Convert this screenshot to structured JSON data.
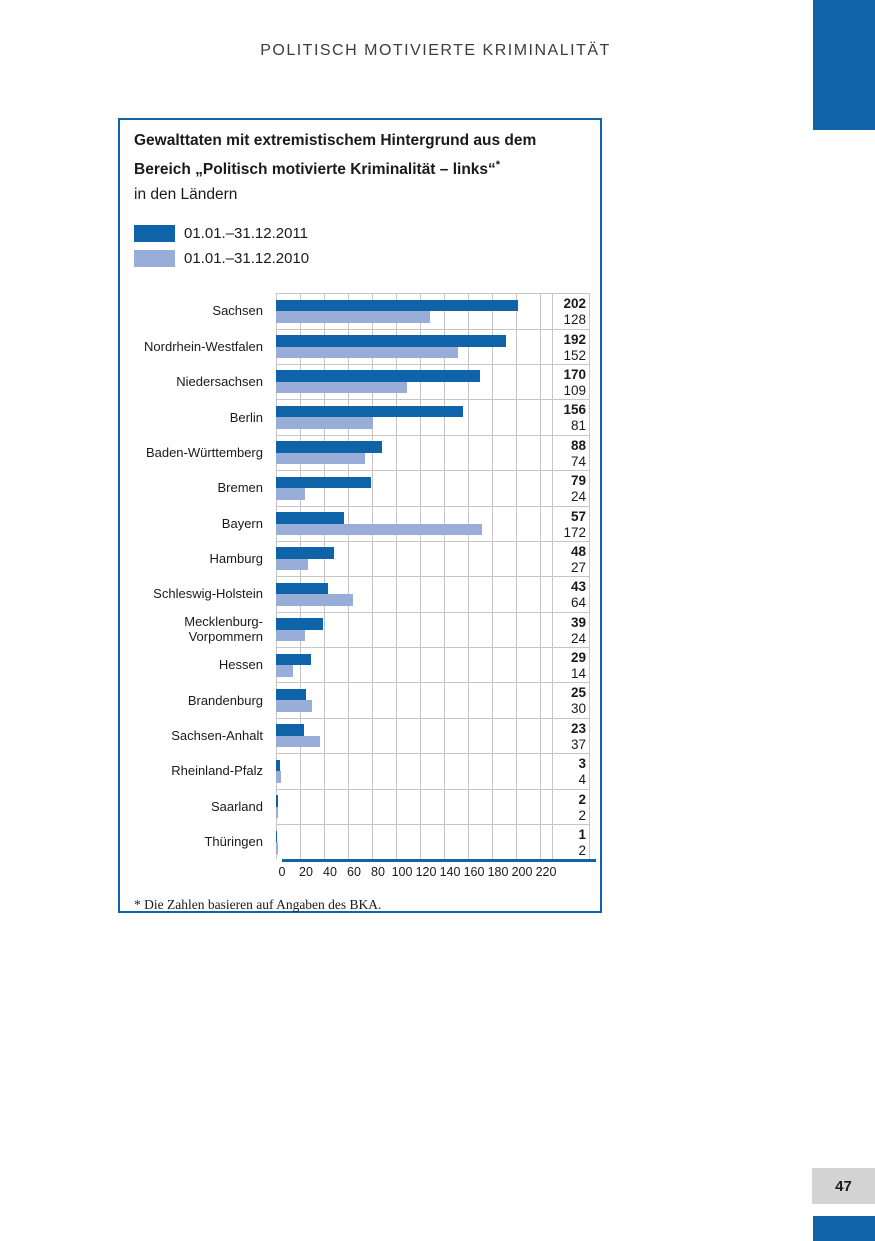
{
  "page": {
    "header": "POLITISCH MOTIVIERTE KRIMINALITÄT",
    "page_number": "47"
  },
  "box": {
    "title_line1": "Gewalttaten mit extremistischem Hintergrund aus dem",
    "title_line2": "Bereich „Politisch motivierte Kriminalität – links“",
    "title_asterisk": "*",
    "title_line3": "in den Ländern",
    "footnote": "* Die Zahlen basieren auf Angaben des BKA."
  },
  "colors": {
    "accent_blue": "#0f63a8",
    "light_blue": "#98add8",
    "grid_gray": "#c6c6c6",
    "page_badge_gray": "#d3d3d3"
  },
  "chart_data": {
    "type": "bar",
    "orientation": "horizontal",
    "title": "Gewalttaten mit extremistischem Hintergrund aus dem Bereich „Politisch motivierte Kriminalität – links“ in den Ländern",
    "categories": [
      "Sachsen",
      "Nordrhein-Westfalen",
      "Niedersachsen",
      "Berlin",
      "Baden-Württemberg",
      "Bremen",
      "Bayern",
      "Hamburg",
      "Schleswig-Holstein",
      "Mecklenburg-Vorpommern",
      "Hessen",
      "Brandenburg",
      "Sachsen-Anhalt",
      "Rheinland-Pfalz",
      "Saarland",
      "Thüringen"
    ],
    "series": [
      {
        "name": "01.01.–31.12.2011",
        "color": "#0f63a8",
        "values": [
          202,
          192,
          170,
          156,
          88,
          79,
          57,
          48,
          43,
          39,
          29,
          25,
          23,
          3,
          2,
          1
        ]
      },
      {
        "name": "01.01.–31.12.2010",
        "color": "#98add8",
        "values": [
          128,
          152,
          109,
          81,
          74,
          24,
          172,
          27,
          64,
          24,
          14,
          30,
          37,
          4,
          2,
          2
        ]
      }
    ],
    "legend_position": "top-left",
    "xlim": [
      0,
      220
    ],
    "x_ticks": [
      0,
      20,
      40,
      60,
      80,
      100,
      120,
      140,
      160,
      180,
      200,
      220
    ],
    "grid": true,
    "value_labels": "right column, 2011 bold above 2010"
  }
}
